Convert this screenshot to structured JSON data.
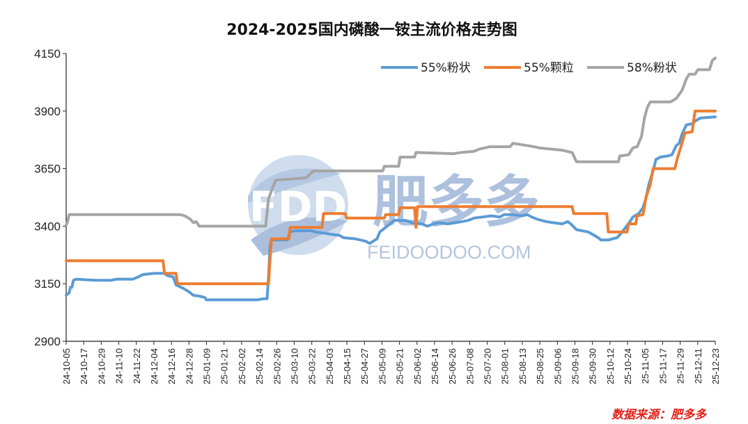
{
  "chart_data": {
    "type": "line",
    "title": "2024-2025国内磷酸一铵主流价格走势图",
    "xlabel": "",
    "ylabel": "",
    "ylim": [
      2900,
      4150
    ],
    "yticks": [
      2900,
      3150,
      3400,
      3650,
      3900,
      4150
    ],
    "x_start": "2024-10-05",
    "x_end": "2025-12-28",
    "x_tick_labels": [
      "24-10-05",
      "24-10-17",
      "24-10-29",
      "24-11-10",
      "24-11-22",
      "24-12-04",
      "24-12-16",
      "24-12-28",
      "25-01-09",
      "25-01-21",
      "25-02-02",
      "25-02-14",
      "25-02-26",
      "25-03-10",
      "25-03-22",
      "25-04-03",
      "25-04-15",
      "25-04-27",
      "25-05-09",
      "25-05-21",
      "25-06-02",
      "25-06-14",
      "25-06-26",
      "25-07-08",
      "25-07-20",
      "25-08-01",
      "25-08-13",
      "25-08-25",
      "25-09-06",
      "25-09-18",
      "25-09-30",
      "25-10-12",
      "25-10-24",
      "25-11-05",
      "25-11-17",
      "25-11-29",
      "25-12-11",
      "25-12-23"
    ],
    "grid": false,
    "legend_position": "top-right",
    "series": [
      {
        "name": "55%粉状",
        "color": "#5b9bd5",
        "points": [
          [
            "2024-10-05",
            3100
          ],
          [
            "2024-10-07",
            3110
          ],
          [
            "2024-10-08",
            3135
          ],
          [
            "2024-10-09",
            3135
          ],
          [
            "2024-10-10",
            3165
          ],
          [
            "2024-10-12",
            3170
          ],
          [
            "2024-10-25",
            3165
          ],
          [
            "2024-11-05",
            3165
          ],
          [
            "2024-11-09",
            3170
          ],
          [
            "2024-11-20",
            3170
          ],
          [
            "2024-11-24",
            3180
          ],
          [
            "2024-11-27",
            3190
          ],
          [
            "2024-12-05",
            3195
          ],
          [
            "2024-12-12",
            3195
          ],
          [
            "2024-12-14",
            3185
          ],
          [
            "2024-12-18",
            3180
          ],
          [
            "2024-12-20",
            3145
          ],
          [
            "2024-12-25",
            3130
          ],
          [
            "2024-12-29",
            3115
          ],
          [
            "2025-01-01",
            3100
          ],
          [
            "2025-01-06",
            3095
          ],
          [
            "2025-01-09",
            3090
          ],
          [
            "2025-01-10",
            3080
          ],
          [
            "2025-02-14",
            3080
          ],
          [
            "2025-02-19",
            3085
          ],
          [
            "2025-02-21",
            3085
          ],
          [
            "2025-02-22",
            3180
          ],
          [
            "2025-02-23",
            3315
          ],
          [
            "2025-02-24",
            3340
          ],
          [
            "2025-03-07",
            3340
          ],
          [
            "2025-03-09",
            3375
          ],
          [
            "2025-03-12",
            3380
          ],
          [
            "2025-03-24",
            3380
          ],
          [
            "2025-03-26",
            3375
          ],
          [
            "2025-04-01",
            3370
          ],
          [
            "2025-04-06",
            3365
          ],
          [
            "2025-04-12",
            3360
          ],
          [
            "2025-04-15",
            3350
          ],
          [
            "2025-04-23",
            3345
          ],
          [
            "2025-04-30",
            3335
          ],
          [
            "2025-05-03",
            3325
          ],
          [
            "2025-05-08",
            3345
          ],
          [
            "2025-05-10",
            3375
          ],
          [
            "2025-05-13",
            3390
          ],
          [
            "2025-05-18",
            3415
          ],
          [
            "2025-05-20",
            3425
          ],
          [
            "2025-05-28",
            3425
          ],
          [
            "2025-06-01",
            3415
          ],
          [
            "2025-06-08",
            3410
          ],
          [
            "2025-06-12",
            3400
          ],
          [
            "2025-06-16",
            3410
          ],
          [
            "2025-06-20",
            3415
          ],
          [
            "2025-06-26",
            3410
          ],
          [
            "2025-07-01",
            3415
          ],
          [
            "2025-07-06",
            3420
          ],
          [
            "2025-07-10",
            3425
          ],
          [
            "2025-07-14",
            3435
          ],
          [
            "2025-07-20",
            3440
          ],
          [
            "2025-07-26",
            3445
          ],
          [
            "2025-08-01",
            3440
          ],
          [
            "2025-08-04",
            3450
          ],
          [
            "2025-08-10",
            3450
          ],
          [
            "2025-08-16",
            3445
          ],
          [
            "2025-08-20",
            3450
          ],
          [
            "2025-08-23",
            3440
          ],
          [
            "2025-08-27",
            3430
          ],
          [
            "2025-09-02",
            3420
          ],
          [
            "2025-09-07",
            3415
          ],
          [
            "2025-09-13",
            3410
          ],
          [
            "2025-09-17",
            3420
          ],
          [
            "2025-09-19",
            3410
          ],
          [
            "2025-09-23",
            3385
          ],
          [
            "2025-10-01",
            3375
          ],
          [
            "2025-10-04",
            3365
          ],
          [
            "2025-10-08",
            3350
          ],
          [
            "2025-10-10",
            3340
          ],
          [
            "2025-10-15",
            3340
          ],
          [
            "2025-10-18",
            3345
          ],
          [
            "2025-10-21",
            3350
          ],
          [
            "2025-10-24",
            3370
          ],
          [
            "2025-10-27",
            3395
          ],
          [
            "2025-10-30",
            3420
          ],
          [
            "2025-11-01",
            3440
          ],
          [
            "2025-11-05",
            3455
          ],
          [
            "2025-11-08",
            3480
          ],
          [
            "2025-11-10",
            3520
          ],
          [
            "2025-11-12",
            3580
          ],
          [
            "2025-11-15",
            3640
          ],
          [
            "2025-11-17",
            3690
          ],
          [
            "2025-11-20",
            3700
          ],
          [
            "2025-11-25",
            3705
          ],
          [
            "2025-11-28",
            3710
          ],
          [
            "2025-12-01",
            3750
          ],
          [
            "2025-12-03",
            3760
          ],
          [
            "2025-12-05",
            3800
          ],
          [
            "2025-12-08",
            3840
          ],
          [
            "2025-12-12",
            3845
          ],
          [
            "2025-12-15",
            3860
          ],
          [
            "2025-12-18",
            3870
          ],
          [
            "2025-12-28",
            3875
          ]
        ]
      },
      {
        "name": "55%颗粒",
        "color": "#ed7d31",
        "points": [
          [
            "2024-10-05",
            3250
          ],
          [
            "2024-12-11",
            3250
          ],
          [
            "2024-12-12",
            3195
          ],
          [
            "2024-12-20",
            3195
          ],
          [
            "2024-12-21",
            3150
          ],
          [
            "2025-02-22",
            3150
          ],
          [
            "2025-02-23",
            3255
          ],
          [
            "2025-02-24",
            3345
          ],
          [
            "2025-03-08",
            3345
          ],
          [
            "2025-03-09",
            3395
          ],
          [
            "2025-03-31",
            3395
          ],
          [
            "2025-04-01",
            3455
          ],
          [
            "2025-04-16",
            3455
          ],
          [
            "2025-04-17",
            3435
          ],
          [
            "2025-05-13",
            3435
          ],
          [
            "2025-05-14",
            3450
          ],
          [
            "2025-05-23",
            3450
          ],
          [
            "2025-05-24",
            3480
          ],
          [
            "2025-06-03",
            3480
          ],
          [
            "2025-06-04",
            3395
          ],
          [
            "2025-06-05",
            3485
          ],
          [
            "2025-09-20",
            3485
          ],
          [
            "2025-09-21",
            3455
          ],
          [
            "2025-10-14",
            3455
          ],
          [
            "2025-10-15",
            3375
          ],
          [
            "2025-10-28",
            3375
          ],
          [
            "2025-10-29",
            3410
          ],
          [
            "2025-11-03",
            3410
          ],
          [
            "2025-11-04",
            3445
          ],
          [
            "2025-11-08",
            3450
          ],
          [
            "2025-11-10",
            3525
          ],
          [
            "2025-11-13",
            3580
          ],
          [
            "2025-11-15",
            3650
          ],
          [
            "2025-11-30",
            3650
          ],
          [
            "2025-12-02",
            3700
          ],
          [
            "2025-12-05",
            3760
          ],
          [
            "2025-12-07",
            3805
          ],
          [
            "2025-12-12",
            3810
          ],
          [
            "2025-12-14",
            3900
          ],
          [
            "2025-12-28",
            3900
          ]
        ]
      },
      {
        "name": "58%粉状",
        "color": "#a5a5a5",
        "points": [
          [
            "2024-10-05",
            3405
          ],
          [
            "2024-10-06",
            3420
          ],
          [
            "2024-10-07",
            3450
          ],
          [
            "2024-12-23",
            3450
          ],
          [
            "2024-12-26",
            3445
          ],
          [
            "2024-12-30",
            3430
          ],
          [
            "2025-01-01",
            3415
          ],
          [
            "2025-01-03",
            3420
          ],
          [
            "2025-01-05",
            3400
          ],
          [
            "2025-02-20",
            3400
          ],
          [
            "2025-02-22",
            3520
          ],
          [
            "2025-02-25",
            3570
          ],
          [
            "2025-02-27",
            3600
          ],
          [
            "2025-03-20",
            3610
          ],
          [
            "2025-03-25",
            3640
          ],
          [
            "2025-05-12",
            3640
          ],
          [
            "2025-05-13",
            3660
          ],
          [
            "2025-05-23",
            3660
          ],
          [
            "2025-05-24",
            3700
          ],
          [
            "2025-06-03",
            3700
          ],
          [
            "2025-06-04",
            3720
          ],
          [
            "2025-06-30",
            3715
          ],
          [
            "2025-07-05",
            3720
          ],
          [
            "2025-07-14",
            3725
          ],
          [
            "2025-07-18",
            3735
          ],
          [
            "2025-07-25",
            3745
          ],
          [
            "2025-08-08",
            3745
          ],
          [
            "2025-08-10",
            3760
          ],
          [
            "2025-08-15",
            3755
          ],
          [
            "2025-08-25",
            3745
          ],
          [
            "2025-08-28",
            3740
          ],
          [
            "2025-09-05",
            3735
          ],
          [
            "2025-09-13",
            3730
          ],
          [
            "2025-09-20",
            3720
          ],
          [
            "2025-09-23",
            3680
          ],
          [
            "2025-10-22",
            3680
          ],
          [
            "2025-10-23",
            3705
          ],
          [
            "2025-10-29",
            3710
          ],
          [
            "2025-11-01",
            3740
          ],
          [
            "2025-11-04",
            3745
          ],
          [
            "2025-11-07",
            3790
          ],
          [
            "2025-11-09",
            3870
          ],
          [
            "2025-11-11",
            3915
          ],
          [
            "2025-11-13",
            3940
          ],
          [
            "2025-11-27",
            3940
          ],
          [
            "2025-12-01",
            3955
          ],
          [
            "2025-12-05",
            3990
          ],
          [
            "2025-12-08",
            4040
          ],
          [
            "2025-12-10",
            4060
          ],
          [
            "2025-12-14",
            4060
          ],
          [
            "2025-12-16",
            4080
          ],
          [
            "2025-12-24",
            4080
          ],
          [
            "2025-12-26",
            4120
          ],
          [
            "2025-12-28",
            4130
          ]
        ]
      }
    ]
  },
  "watermark": {
    "logo_text": "FDD",
    "brand_text": "肥多多",
    "url_text": "FEIDOODOO.COM"
  },
  "source_note": "数据来源：肥多多"
}
